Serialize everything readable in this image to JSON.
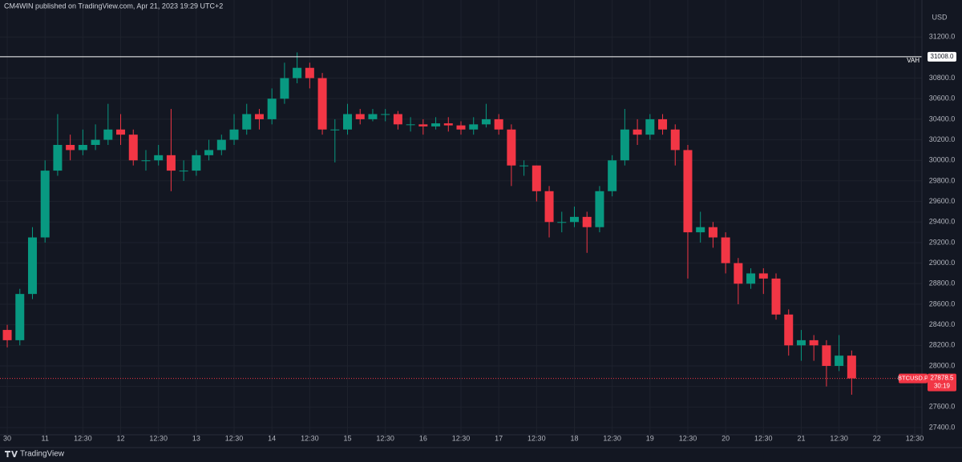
{
  "header": "CM4WIN published on TradingView.com, Apr 21, 2023 19:29 UTC+2",
  "footer": {
    "brand": "TradingView"
  },
  "chart_data": {
    "type": "candlestick",
    "price_axis_label": "USD",
    "background": "#131722",
    "grid": true,
    "up_color": "#089981",
    "down_color": "#f23645",
    "xlim": [
      -2.3,
      290.3
    ],
    "ylim": [
      27330,
      31560
    ],
    "xticks": [
      {
        "value": 0,
        "label": "30"
      },
      {
        "value": 12,
        "label": "11"
      },
      {
        "value": 24,
        "label": "12:30"
      },
      {
        "value": 36,
        "label": "12"
      },
      {
        "value": 48,
        "label": "12:30"
      },
      {
        "value": 60,
        "label": "13"
      },
      {
        "value": 72,
        "label": "12:30"
      },
      {
        "value": 84,
        "label": "14"
      },
      {
        "value": 96,
        "label": "12:30"
      },
      {
        "value": 108,
        "label": "15"
      },
      {
        "value": 120,
        "label": "12:30"
      },
      {
        "value": 132,
        "label": "16"
      },
      {
        "value": 144,
        "label": "12:30"
      },
      {
        "value": 156,
        "label": "17"
      },
      {
        "value": 168,
        "label": "12:30"
      },
      {
        "value": 180,
        "label": "18"
      },
      {
        "value": 192,
        "label": "12:30"
      },
      {
        "value": 204,
        "label": "19"
      },
      {
        "value": 216,
        "label": "12:30"
      },
      {
        "value": 228,
        "label": "20"
      },
      {
        "value": 240,
        "label": "12:30"
      },
      {
        "value": 252,
        "label": "21"
      },
      {
        "value": 264,
        "label": "12:30"
      },
      {
        "value": 276,
        "label": "22"
      },
      {
        "value": 288,
        "label": "12:30"
      }
    ],
    "yticks": [
      {
        "value": 27400,
        "label": "27400.0"
      },
      {
        "value": 27600,
        "label": "27600.0"
      },
      {
        "value": 27800,
        "label": "27800.0"
      },
      {
        "value": 28000,
        "label": "28000.0"
      },
      {
        "value": 28200,
        "label": "28200.0"
      },
      {
        "value": 28400,
        "label": "28400.0"
      },
      {
        "value": 28600,
        "label": "28600.0"
      },
      {
        "value": 28800,
        "label": "28800.0"
      },
      {
        "value": 29000,
        "label": "29000.0"
      },
      {
        "value": 29200,
        "label": "29200.0"
      },
      {
        "value": 29400,
        "label": "29400.0"
      },
      {
        "value": 29600,
        "label": "29600.0"
      },
      {
        "value": 29800,
        "label": "29800.0"
      },
      {
        "value": 30000,
        "label": "30000.0"
      },
      {
        "value": 30200,
        "label": "30200.0"
      },
      {
        "value": 30400,
        "label": "30400.0"
      },
      {
        "value": 30600,
        "label": "30600.0"
      },
      {
        "value": 30800,
        "label": "30800.0"
      },
      {
        "value": 31200,
        "label": "31200.0"
      }
    ],
    "series": {
      "x": [
        0,
        4,
        8,
        12,
        16,
        20,
        24,
        28,
        32,
        36,
        40,
        44,
        48,
        52,
        56,
        60,
        64,
        68,
        72,
        76,
        80,
        84,
        88,
        92,
        96,
        100,
        104,
        108,
        112,
        116,
        120,
        124,
        128,
        132,
        136,
        140,
        144,
        148,
        152,
        156,
        160,
        164,
        168,
        172,
        176,
        180,
        184,
        188,
        192,
        196,
        200,
        204,
        208,
        212,
        216,
        220,
        224,
        228,
        232,
        236,
        240,
        244,
        248,
        252,
        256,
        260,
        264,
        268
      ],
      "open": [
        28350,
        28250,
        28700,
        29250,
        29900,
        30150,
        30100,
        30150,
        30200,
        30300,
        30250,
        30000,
        30000,
        30050,
        29900,
        29900,
        30050,
        30100,
        30200,
        30300,
        30450,
        30400,
        30600,
        30800,
        30900,
        30800,
        30300,
        30300,
        30450,
        30400,
        30450,
        30450,
        30350,
        30350,
        30330,
        30360,
        30340,
        30300,
        30350,
        30400,
        30300,
        29950,
        29950,
        29700,
        29400,
        29400,
        29450,
        29350,
        29700,
        30000,
        30300,
        30250,
        30400,
        30300,
        30100,
        29300,
        29350,
        29250,
        29000,
        28800,
        28900,
        28850,
        28500,
        28200,
        28250,
        28200,
        28000,
        28100
      ],
      "high": [
        28400,
        28750,
        29350,
        30000,
        30450,
        30250,
        30300,
        30350,
        30550,
        30450,
        30300,
        30100,
        30150,
        30500,
        30000,
        30100,
        30200,
        30250,
        30450,
        30550,
        30500,
        30700,
        30950,
        31050,
        30950,
        30850,
        30400,
        30550,
        30500,
        30500,
        30500,
        30480,
        30420,
        30400,
        30420,
        30420,
        30380,
        30420,
        30550,
        30450,
        30350,
        30000,
        29950,
        29750,
        29500,
        29550,
        29500,
        29750,
        30050,
        30500,
        30400,
        30450,
        30450,
        30350,
        30150,
        29500,
        29400,
        29300,
        29050,
        28950,
        28950,
        28900,
        28550,
        28350,
        28300,
        28250,
        28300,
        28150
      ],
      "low": [
        28180,
        28200,
        28650,
        29200,
        29850,
        30000,
        30050,
        30100,
        30150,
        30150,
        29950,
        29900,
        29950,
        29700,
        29800,
        29850,
        30000,
        30050,
        30150,
        30250,
        30300,
        30350,
        30550,
        30750,
        30700,
        30250,
        29980,
        30250,
        30350,
        30380,
        30380,
        30300,
        30280,
        30250,
        30300,
        30280,
        30250,
        30250,
        30320,
        30250,
        29750,
        29850,
        29600,
        29250,
        29300,
        29350,
        29100,
        29300,
        29650,
        29950,
        30150,
        30200,
        30250,
        29950,
        28850,
        29200,
        29150,
        28900,
        28600,
        28750,
        28700,
        28450,
        28100,
        28050,
        28050,
        27800,
        27950,
        27720
      ],
      "close": [
        28250,
        28700,
        29250,
        29900,
        30150,
        30100,
        30150,
        30200,
        30300,
        30250,
        30000,
        30000,
        30050,
        29900,
        29900,
        30050,
        30100,
        30200,
        30300,
        30450,
        30400,
        30600,
        30800,
        30900,
        30800,
        30300,
        30300,
        30450,
        30400,
        30450,
        30450,
        30350,
        30350,
        30330,
        30360,
        30340,
        30300,
        30350,
        30400,
        30300,
        29950,
        29950,
        29700,
        29400,
        29400,
        29450,
        29350,
        29700,
        30000,
        30300,
        30250,
        30400,
        30300,
        30100,
        29300,
        29350,
        29250,
        29000,
        28800,
        28900,
        28850,
        28500,
        28200,
        28250,
        28200,
        28000,
        28100,
        27878.5
      ]
    },
    "hline": {
      "name": "VAH",
      "price": 31008,
      "price_label": "31008.0",
      "color": "#ffffff"
    },
    "last_price": {
      "name": "BTCUSD.P",
      "value": 27878.5,
      "countdown": "30:19",
      "color": "#f23645"
    }
  }
}
